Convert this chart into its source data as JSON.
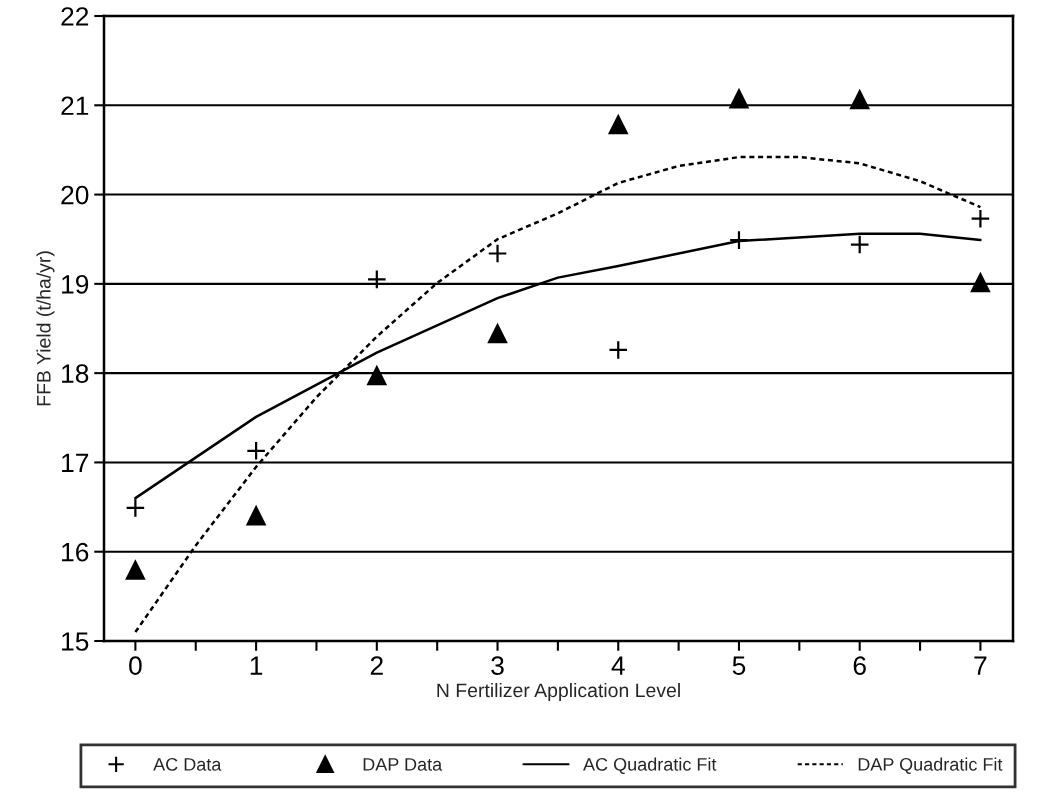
{
  "chart_data": {
    "type": "scatter",
    "xlabel": "N Fertilizer Application Level",
    "ylabel": "FFB Yield (t/ha/yr)",
    "xlim": [
      -0.26,
      7.27
    ],
    "ylim": [
      15,
      22
    ],
    "xticks": [
      0,
      {
        "value": 0.5,
        "label": null
      },
      1,
      {
        "value": 1.5,
        "label": null
      },
      2,
      {
        "value": 2.5,
        "label": null
      },
      3,
      {
        "value": 3.5,
        "label": null
      },
      4,
      {
        "value": 4.5,
        "label": null
      },
      5,
      {
        "value": 5.5,
        "label": null
      },
      6,
      {
        "value": 6.5,
        "label": null
      },
      7
    ],
    "yticks": [
      15,
      16,
      17,
      18,
      19,
      20,
      21,
      22
    ],
    "grid": "y",
    "legend": "bottom",
    "series": [
      {
        "name": "AC Data",
        "marker": "cross",
        "color": "#000000",
        "x": [
          0,
          1,
          2,
          3,
          4,
          5,
          6,
          7
        ],
        "values": [
          16.49,
          17.13,
          19.05,
          19.34,
          18.26,
          19.49,
          19.44,
          19.73
        ]
      },
      {
        "name": "DAP Data",
        "marker": "triangle",
        "color": "#000000",
        "x": [
          0,
          1,
          2,
          3,
          4,
          5,
          6,
          7
        ],
        "values": [
          15.8,
          16.41,
          17.98,
          18.45,
          20.79,
          21.08,
          21.07,
          19.02
        ]
      },
      {
        "name": "AC Quadratic Fit",
        "type": "line",
        "line_style": "solid",
        "color": "#000000",
        "x": [
          0,
          1,
          2,
          3,
          3.5,
          4,
          5,
          6,
          6.5,
          7
        ],
        "values": [
          16.6,
          17.51,
          18.23,
          18.84,
          19.07,
          19.2,
          19.48,
          19.56,
          19.56,
          19.49
        ]
      },
      {
        "name": "DAP Quadratic Fit",
        "type": "line",
        "line_style": "dotted",
        "color": "#000000",
        "x": [
          0,
          0.5,
          1,
          1.5,
          2,
          2.5,
          3,
          3.5,
          4,
          4.5,
          5,
          5.5,
          6,
          6.5,
          7
        ],
        "values": [
          15.1,
          16.07,
          16.95,
          17.73,
          18.41,
          19.01,
          19.5,
          19.79,
          20.13,
          20.32,
          20.42,
          20.42,
          20.35,
          20.15,
          19.86
        ]
      }
    ]
  }
}
